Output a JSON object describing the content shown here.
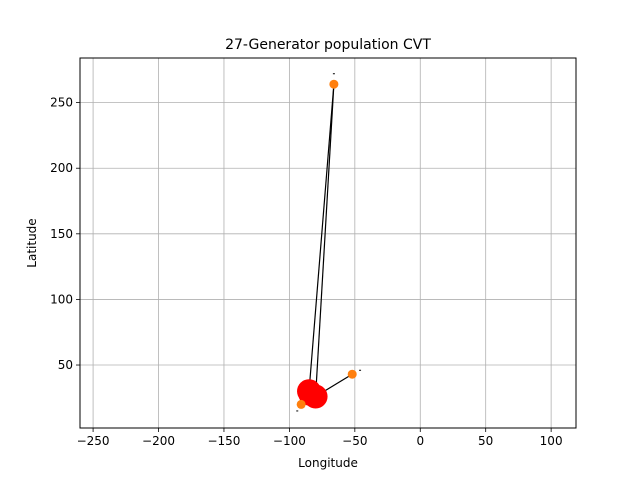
{
  "chart_data": {
    "type": "scatter",
    "title": "27-Generator population CVT",
    "xlabel": "Longitude",
    "ylabel": "Latitude",
    "xlim": [
      -260,
      119
    ],
    "ylim": [
      2,
      284
    ],
    "xticks": [
      -250,
      -200,
      -150,
      -100,
      -50,
      0,
      50,
      100
    ],
    "yticks": [
      50,
      100,
      150,
      200,
      250
    ],
    "grid": true,
    "colors": {
      "generator": "#ff0000",
      "endpoint": "#ff7f0e",
      "line": "#000000"
    },
    "generators": [
      {
        "x": -85,
        "y": 30,
        "size": "large"
      },
      {
        "x": -80,
        "y": 26,
        "size": "large"
      },
      {
        "x": -84,
        "y": 28,
        "size": "large"
      }
    ],
    "endpoints": [
      {
        "x": -66,
        "y": 264
      },
      {
        "x": -52,
        "y": 43
      },
      {
        "x": -91,
        "y": 20
      }
    ],
    "edges": [
      {
        "from": [
          -85,
          30
        ],
        "to": [
          -66,
          264
        ]
      },
      {
        "from": [
          -80,
          26
        ],
        "to": [
          -66,
          264
        ]
      },
      {
        "from": [
          -80,
          26
        ],
        "to": [
          -52,
          43
        ]
      },
      {
        "from": [
          -85,
          30
        ],
        "to": [
          -91,
          20
        ]
      }
    ],
    "ticks_marks": [
      {
        "x": -66,
        "y": 272
      },
      {
        "x": -46,
        "y": 46
      },
      {
        "x": -94,
        "y": 15
      }
    ]
  }
}
